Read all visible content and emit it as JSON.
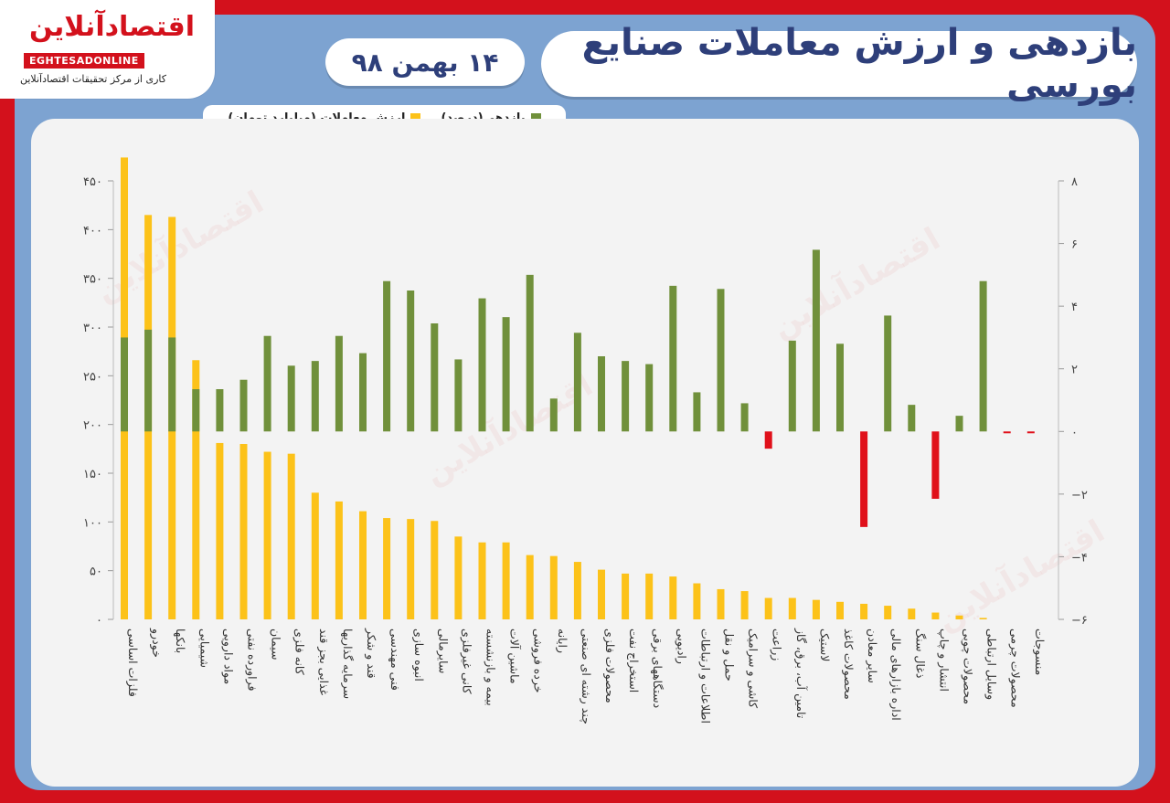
{
  "logo": {
    "name": "اقتصادآنلاین",
    "latin": "EGHTESADONLINE",
    "tagline": "کاری از مرکز تحقیقات اقتصادآنلاین"
  },
  "header": {
    "title": "بازدهی و ارزش معاملات صنایع بورسی",
    "date": "۱۴ بهمن ۹۸"
  },
  "legend": {
    "returns_label": "بازدهی(درصد)",
    "value_label": "ارزش معاملات (میلیارد تومان)"
  },
  "colors": {
    "returns_positive": "#70903b",
    "returns_negative": "#e0101a",
    "value": "#fcc219",
    "brand_red": "#d3111c",
    "title_text": "#2e3f7a"
  },
  "chart_data": {
    "type": "bar",
    "categories": [
      "فلزات اساسی",
      "خودرو",
      "بانکها",
      "شیمیایی",
      "مواد دارویی",
      "فراورده نفتی",
      "سیمان",
      "کانه فلزی",
      "غذایی بجز قند",
      "سرمایه گذاریها",
      "قند و شکر",
      "فنی مهندسی",
      "انبوه سازی",
      "سایرمالی",
      "کانی غیرفلزی",
      "بیمه و بازنشسته",
      "ماشین آلات",
      "خرده فروشی",
      "رایانه",
      "چند رشته ای صنعتی",
      "محصولات فلزی",
      "استخراج نفت",
      "دستگاههای برقی",
      "رادیویی",
      "اطلاعات و ارتباطات",
      "حمل و نقل",
      "کاشی و سرامیک",
      "زراعت",
      "تامین آب، برق، گاز",
      "لاستیک",
      "محصولات کاغذ",
      "سایر معادن",
      "اداره بازارهای مالی",
      "ذغال سنگ",
      "انتشار و چاپ",
      "محصولات چوبی",
      "وسایل ارتباطی",
      "محصولات چرمی",
      "منسوجات"
    ],
    "series": [
      {
        "name": "ارزش معاملات (میلیارد تومان)",
        "axis": "left",
        "values": [
          474,
          415,
          413,
          266,
          181,
          180,
          172,
          170,
          130,
          121,
          111,
          104,
          103,
          101,
          85,
          79,
          79,
          66,
          65,
          59,
          51,
          47,
          47,
          44,
          37,
          31,
          29,
          22,
          22,
          20,
          18,
          16,
          14,
          11,
          7,
          4,
          1.5,
          0,
          0
        ]
      },
      {
        "name": "بازدهی(درصد)",
        "axis": "right",
        "values": [
          3,
          3.25,
          3,
          1.35,
          1.35,
          1.65,
          3.05,
          2.1,
          2.25,
          3.05,
          2.5,
          4.8,
          4.5,
          3.45,
          2.3,
          4.25,
          3.65,
          5,
          1.05,
          3.15,
          2.4,
          2.25,
          2.15,
          4.65,
          1.25,
          4.55,
          0.9,
          -0.55,
          2.9,
          5.8,
          2.8,
          -3.05,
          3.7,
          0.85,
          -2.15,
          0.5,
          4.8,
          -0.05,
          -0.05
        ]
      }
    ],
    "y_left": {
      "min": 0,
      "max": 450,
      "ticks": [
        0,
        50,
        100,
        150,
        200,
        250,
        300,
        350,
        400,
        450
      ]
    },
    "y_right": {
      "min": -6,
      "max": 8,
      "ticks": [
        -6,
        -4,
        -2,
        0,
        2,
        4,
        6,
        8
      ]
    },
    "tick_labels_left": [
      "۰",
      "۵۰",
      "۱۰۰",
      "۱۵۰",
      "۲۰۰",
      "۲۵۰",
      "۳۰۰",
      "۳۵۰",
      "۴۰۰",
      "۴۵۰"
    ],
    "tick_labels_right": [
      "−۶",
      "−۴",
      "−۲",
      "۰",
      "۲",
      "۴",
      "۶",
      "۸"
    ],
    "grid": false,
    "legend_position": "top-left"
  }
}
